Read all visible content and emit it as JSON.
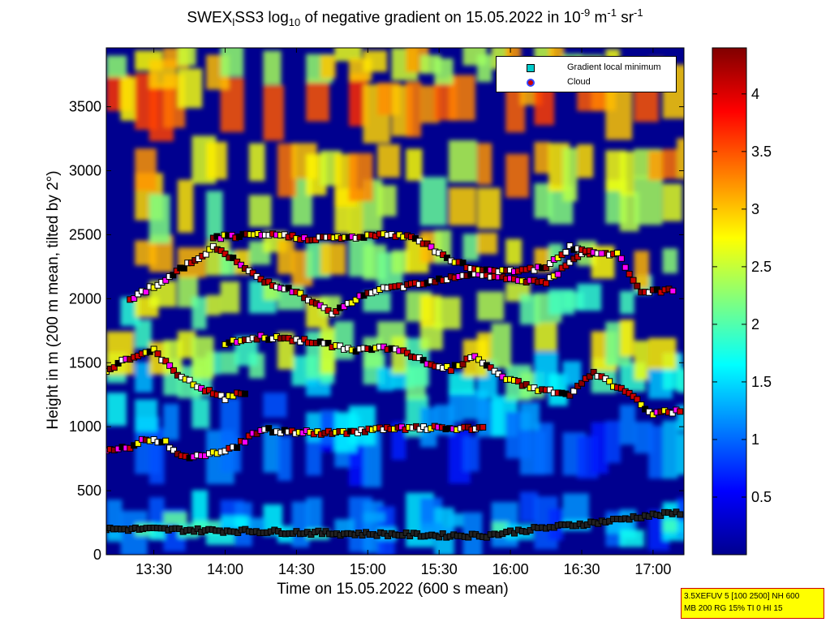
{
  "chart_data": {
    "type": "heatmap",
    "title_parts": {
      "part1": "SWEX",
      "sub1": "l",
      "part2": "SS3 log",
      "sub2": "10",
      "part3": " of negative gradient on 15.05.2022 in 10",
      "sup1": "-9",
      "part4": " m",
      "sup2": "-1",
      "part5": " sr",
      "sup3": "-1"
    },
    "xlabel": "Time on 15.05.2022 (600 s mean)",
    "ylabel": "Height in m (200 m mean, tilted by 2°)",
    "x_ticks": [
      "13:30",
      "14:00",
      "14:30",
      "15:00",
      "15:30",
      "16:00",
      "16:30",
      "17:00"
    ],
    "x_tick_minutes": [
      810,
      840,
      870,
      900,
      930,
      960,
      990,
      1020
    ],
    "xlim_minutes": [
      790,
      1033
    ],
    "y_ticks": [
      0,
      500,
      1000,
      1500,
      2000,
      2500,
      3000,
      3500
    ],
    "ylim": [
      0,
      3960
    ],
    "colorbar": {
      "ticks": [
        "0.5",
        "1",
        "1.5",
        "2",
        "2.5",
        "3",
        "3.5",
        "4"
      ],
      "range": [
        0,
        4.4
      ],
      "colormap": "jet"
    },
    "series": [
      {
        "name": "Gradient local minimum",
        "marker": "square",
        "color": "#00cccc",
        "layers": [
          {
            "points": [
              [
                790,
                200
              ],
              [
                810,
                200
              ],
              [
                830,
                190
              ],
              [
                850,
                185
              ],
              [
                870,
                175
              ],
              [
                890,
                165
              ],
              [
                910,
                160
              ],
              [
                930,
                150
              ],
              [
                950,
                150
              ],
              [
                965,
                190
              ],
              [
                980,
                220
              ],
              [
                1000,
                260
              ],
              [
                1015,
                300
              ],
              [
                1033,
                330
              ]
            ]
          },
          {
            "points": [
              [
                790,
                820
              ],
              [
                800,
                830
              ],
              [
                805,
                900
              ],
              [
                815,
                880
              ],
              [
                820,
                780
              ],
              [
                830,
                760
              ],
              [
                845,
                850
              ],
              [
                855,
                980
              ],
              [
                865,
                960
              ],
              [
                885,
                950
              ],
              [
                905,
                980
              ],
              [
                925,
                990
              ],
              [
                950,
                980
              ]
            ]
          },
          {
            "points": [
              [
                790,
                1430
              ],
              [
                795,
                1500
              ],
              [
                810,
                1600
              ],
              [
                820,
                1400
              ],
              [
                830,
                1300
              ],
              [
                840,
                1220
              ],
              [
                850,
                1280
              ]
            ]
          },
          {
            "points": [
              [
                840,
                1650
              ],
              [
                855,
                1700
              ],
              [
                870,
                1680
              ],
              [
                880,
                1650
              ],
              [
                895,
                1600
              ],
              [
                910,
                1620
              ],
              [
                925,
                1500
              ],
              [
                935,
                1450
              ],
              [
                945,
                1550
              ],
              [
                955,
                1400
              ],
              [
                970,
                1300
              ],
              [
                985,
                1250
              ],
              [
                995,
                1420
              ],
              [
                1010,
                1250
              ],
              [
                1020,
                1100
              ],
              [
                1033,
                1130
              ]
            ]
          },
          {
            "points": [
              [
                800,
                2000
              ],
              [
                815,
                2150
              ],
              [
                835,
                2400
              ],
              [
                840,
                2350
              ],
              [
                855,
                2150
              ],
              [
                870,
                2050
              ],
              [
                885,
                1880
              ],
              [
                900,
                2050
              ],
              [
                915,
                2100
              ],
              [
                930,
                2150
              ],
              [
                945,
                2200
              ],
              [
                960,
                2150
              ],
              [
                975,
                2130
              ],
              [
                990,
                2350
              ],
              [
                1005,
                2350
              ],
              [
                1015,
                2050
              ],
              [
                1030,
                2070
              ]
            ]
          },
          {
            "points": [
              [
                835,
                2480
              ],
              [
                860,
                2500
              ],
              [
                875,
                2470
              ],
              [
                895,
                2480
              ],
              [
                910,
                2500
              ],
              [
                920,
                2480
              ],
              [
                935,
                2300
              ],
              [
                945,
                2230
              ],
              [
                960,
                2220
              ],
              [
                975,
                2240
              ],
              [
                985,
                2400
              ],
              [
                1000,
                2350
              ]
            ]
          }
        ]
      },
      {
        "name": "Cloud",
        "marker": "circle",
        "color": "#cc0000",
        "layers": []
      }
    ],
    "legend_position": "top-right"
  },
  "info_box": {
    "line1": "3.5XEFUV 5 [100 2500] NH 600",
    "line2": "MB 200 RG 15% TI 0 HI 15"
  }
}
